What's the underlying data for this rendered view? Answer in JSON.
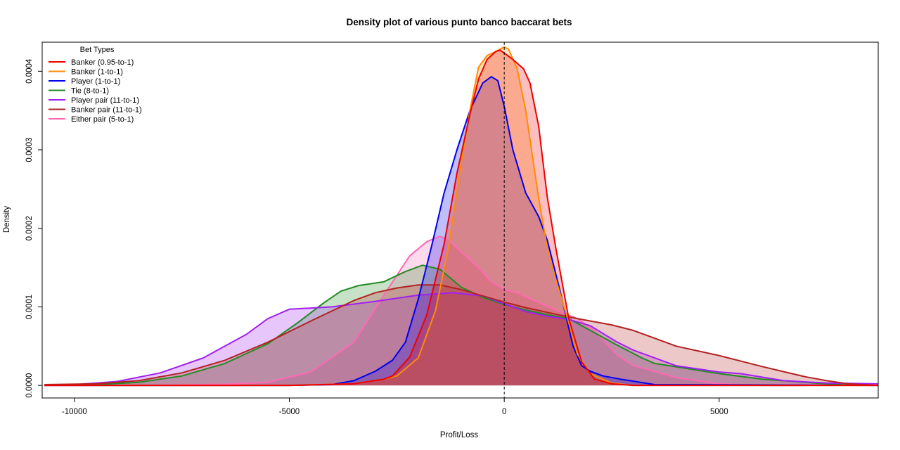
{
  "chart_data": {
    "type": "area",
    "title": "Density plot of various punto banco baccarat bets",
    "xlabel": "Profit/Loss",
    "ylabel": "Density",
    "xlim": [
      -10750,
      8700
    ],
    "ylim": [
      -1.6e-05,
      0.000437
    ],
    "x_ticks": [
      -10000,
      -5000,
      0,
      5000
    ],
    "y_ticks": [
      0,
      0.0001,
      0.0002,
      0.0003,
      0.0004
    ],
    "x_tick_labels": [
      "-10000",
      "-5000",
      "0",
      "5000"
    ],
    "y_tick_labels": [
      "0.0000",
      "0.0001",
      "0.0002",
      "0.0003",
      "0.0004"
    ],
    "reference_line_x": 0,
    "legend": {
      "title": "Bet Types",
      "position": "top-left"
    },
    "series": [
      {
        "name": "Either pair (5-to-1)",
        "color": "#ff69b4",
        "x": [
          -10700,
          -8500,
          -6500,
          -5500,
          -4500,
          -3500,
          -2800,
          -2200,
          -1800,
          -1500,
          -1300,
          -1000,
          -600,
          -300,
          0,
          300,
          700,
          1200,
          1700,
          2100,
          2600,
          3000,
          3300,
          4000,
          5000,
          6000,
          7000
        ],
        "y": [
          0,
          0,
          1.5e-06,
          4e-06,
          1.7e-05,
          5.5e-05,
          0.000115,
          0.000165,
          0.000183,
          0.00019,
          0.000185,
          0.00017,
          0.00015,
          0.000132,
          0.000122,
          0.000118,
          0.000108,
          9.6e-05,
          8.5e-05,
          7e-05,
          4e-05,
          2.5e-05,
          2.1e-05,
          1e-05,
          2e-06,
          0,
          0
        ]
      },
      {
        "name": "Tie (8-to-1)",
        "color": "#228b22",
        "x": [
          -10700,
          -9500,
          -8500,
          -7500,
          -6500,
          -5500,
          -4800,
          -4200,
          -3800,
          -3400,
          -2800,
          -2300,
          -1900,
          -1500,
          -1000,
          -500,
          0,
          500,
          1000,
          1500,
          2000,
          2600,
          3200,
          3500,
          4200,
          5000,
          6000,
          7000,
          7500,
          8000,
          8700
        ],
        "y": [
          0,
          1e-06,
          4e-06,
          1.2e-05,
          2.8e-05,
          5.3e-05,
          8e-05,
          0.000105,
          0.00012,
          0.000127,
          0.000132,
          0.000145,
          0.000153,
          0.000148,
          0.000125,
          0.000112,
          0.000103,
          9.6e-05,
          9e-05,
          8.5e-05,
          7e-05,
          5.2e-05,
          3.5e-05,
          2.8e-05,
          2.2e-05,
          1.5e-05,
          8e-06,
          4e-06,
          2e-06,
          5e-07,
          0
        ]
      },
      {
        "name": "Player pair (11-to-1)",
        "color": "#a020f0",
        "x": [
          -10700,
          -10000,
          -9000,
          -8000,
          -7000,
          -6000,
          -5500,
          -5000,
          -4500,
          -4000,
          -3000,
          -2000,
          -1200,
          -500,
          0,
          500,
          1000,
          1500,
          2000,
          2600,
          3000,
          4000,
          5000,
          5500,
          6500,
          7500,
          8700
        ],
        "y": [
          0,
          1e-06,
          5e-06,
          1.6e-05,
          3.5e-05,
          6.5e-05,
          8.5e-05,
          9.7e-05,
          9.85e-05,
          0.0001,
          0.000107,
          0.000115,
          0.000118,
          0.000114,
          0.000104,
          9.4e-05,
          8.8e-05,
          8.4e-05,
          7.6e-05,
          5.6e-05,
          4.5e-05,
          2.5e-05,
          1.7e-05,
          1.5e-05,
          6e-06,
          3e-06,
          2e-06
        ]
      },
      {
        "name": "Banker pair (11-to-1)",
        "color": "#b22222",
        "x": [
          -10700,
          -9500,
          -8500,
          -7500,
          -6500,
          -5500,
          -4500,
          -3500,
          -3000,
          -2500,
          -2000,
          -1500,
          -1000,
          -500,
          0,
          500,
          1000,
          1500,
          2000,
          2500,
          3000,
          3500,
          4000,
          5000,
          6000,
          7000,
          7500,
          8000,
          8700
        ],
        "y": [
          1e-06,
          2e-06,
          6e-06,
          1.6e-05,
          3.2e-05,
          5.5e-05,
          8.2e-05,
          0.000108,
          0.000118,
          0.000124,
          0.000128,
          0.000128,
          0.000122,
          0.000114,
          0.000106,
          9.9e-05,
          9.3e-05,
          8.7e-05,
          8.2e-05,
          7.7e-05,
          7e-05,
          6e-05,
          5e-05,
          3.8e-05,
          2.4e-05,
          1.1e-05,
          6e-06,
          2e-06,
          0
        ]
      },
      {
        "name": "Player (1-to-1)",
        "color": "#0000ee",
        "x": [
          -10700,
          -5000,
          -4000,
          -3500,
          -3000,
          -2600,
          -2300,
          -2000,
          -1700,
          -1400,
          -1100,
          -800,
          -500,
          -300,
          -150,
          0,
          200,
          500,
          800,
          1000,
          1300,
          1600,
          1800,
          2000,
          2300,
          2700,
          3500,
          10000
        ],
        "y": [
          0,
          0,
          1e-06,
          6e-06,
          1.8e-05,
          3.2e-05,
          5.5e-05,
          0.00011,
          0.000175,
          0.000245,
          0.0003,
          0.00035,
          0.000385,
          0.000393,
          0.000388,
          0.000355,
          0.0003,
          0.000245,
          0.000215,
          0.000185,
          0.00012,
          5e-05,
          2.5e-05,
          1.8e-05,
          1.2e-05,
          8e-06,
          1e-06,
          0
        ]
      },
      {
        "name": "Banker (1-to-1)",
        "color": "#ff8c00",
        "x": [
          -10700,
          -5000,
          -3500,
          -2800,
          -2500,
          -2000,
          -1600,
          -1300,
          -1000,
          -800,
          -600,
          -400,
          -200,
          0,
          100,
          300,
          500,
          800,
          1000,
          1200,
          1500,
          1700,
          2000,
          2500,
          3000,
          10000
        ],
        "y": [
          0,
          0,
          2e-06,
          8e-06,
          1.2e-05,
          3.5e-05,
          9.5e-05,
          0.000175,
          0.000283,
          0.00035,
          0.000405,
          0.00042,
          0.000425,
          0.000431,
          0.000428,
          0.000403,
          0.00035,
          0.000238,
          0.000175,
          0.000135,
          8e-05,
          4e-05,
          1.5e-05,
          3e-06,
          0,
          0
        ]
      },
      {
        "name": "Banker (0.95-to-1)",
        "color": "#ee0000",
        "x": [
          -10700,
          -5000,
          -3500,
          -2800,
          -2600,
          -2200,
          -1800,
          -1400,
          -1100,
          -800,
          -600,
          -400,
          -200,
          -100,
          0,
          200,
          450,
          600,
          800,
          1000,
          1200,
          1500,
          1800,
          2100,
          2500,
          3000,
          10000
        ],
        "y": [
          0,
          0,
          2e-06,
          8e-06,
          1.2e-05,
          3.6e-05,
          9e-05,
          0.00018,
          0.00027,
          0.000345,
          0.00039,
          0.000415,
          0.000425,
          0.000427,
          0.000423,
          0.000415,
          0.000403,
          0.000385,
          0.00033,
          0.00024,
          0.000175,
          8.5e-05,
          3e-05,
          8e-06,
          2e-06,
          0,
          0
        ]
      }
    ]
  }
}
